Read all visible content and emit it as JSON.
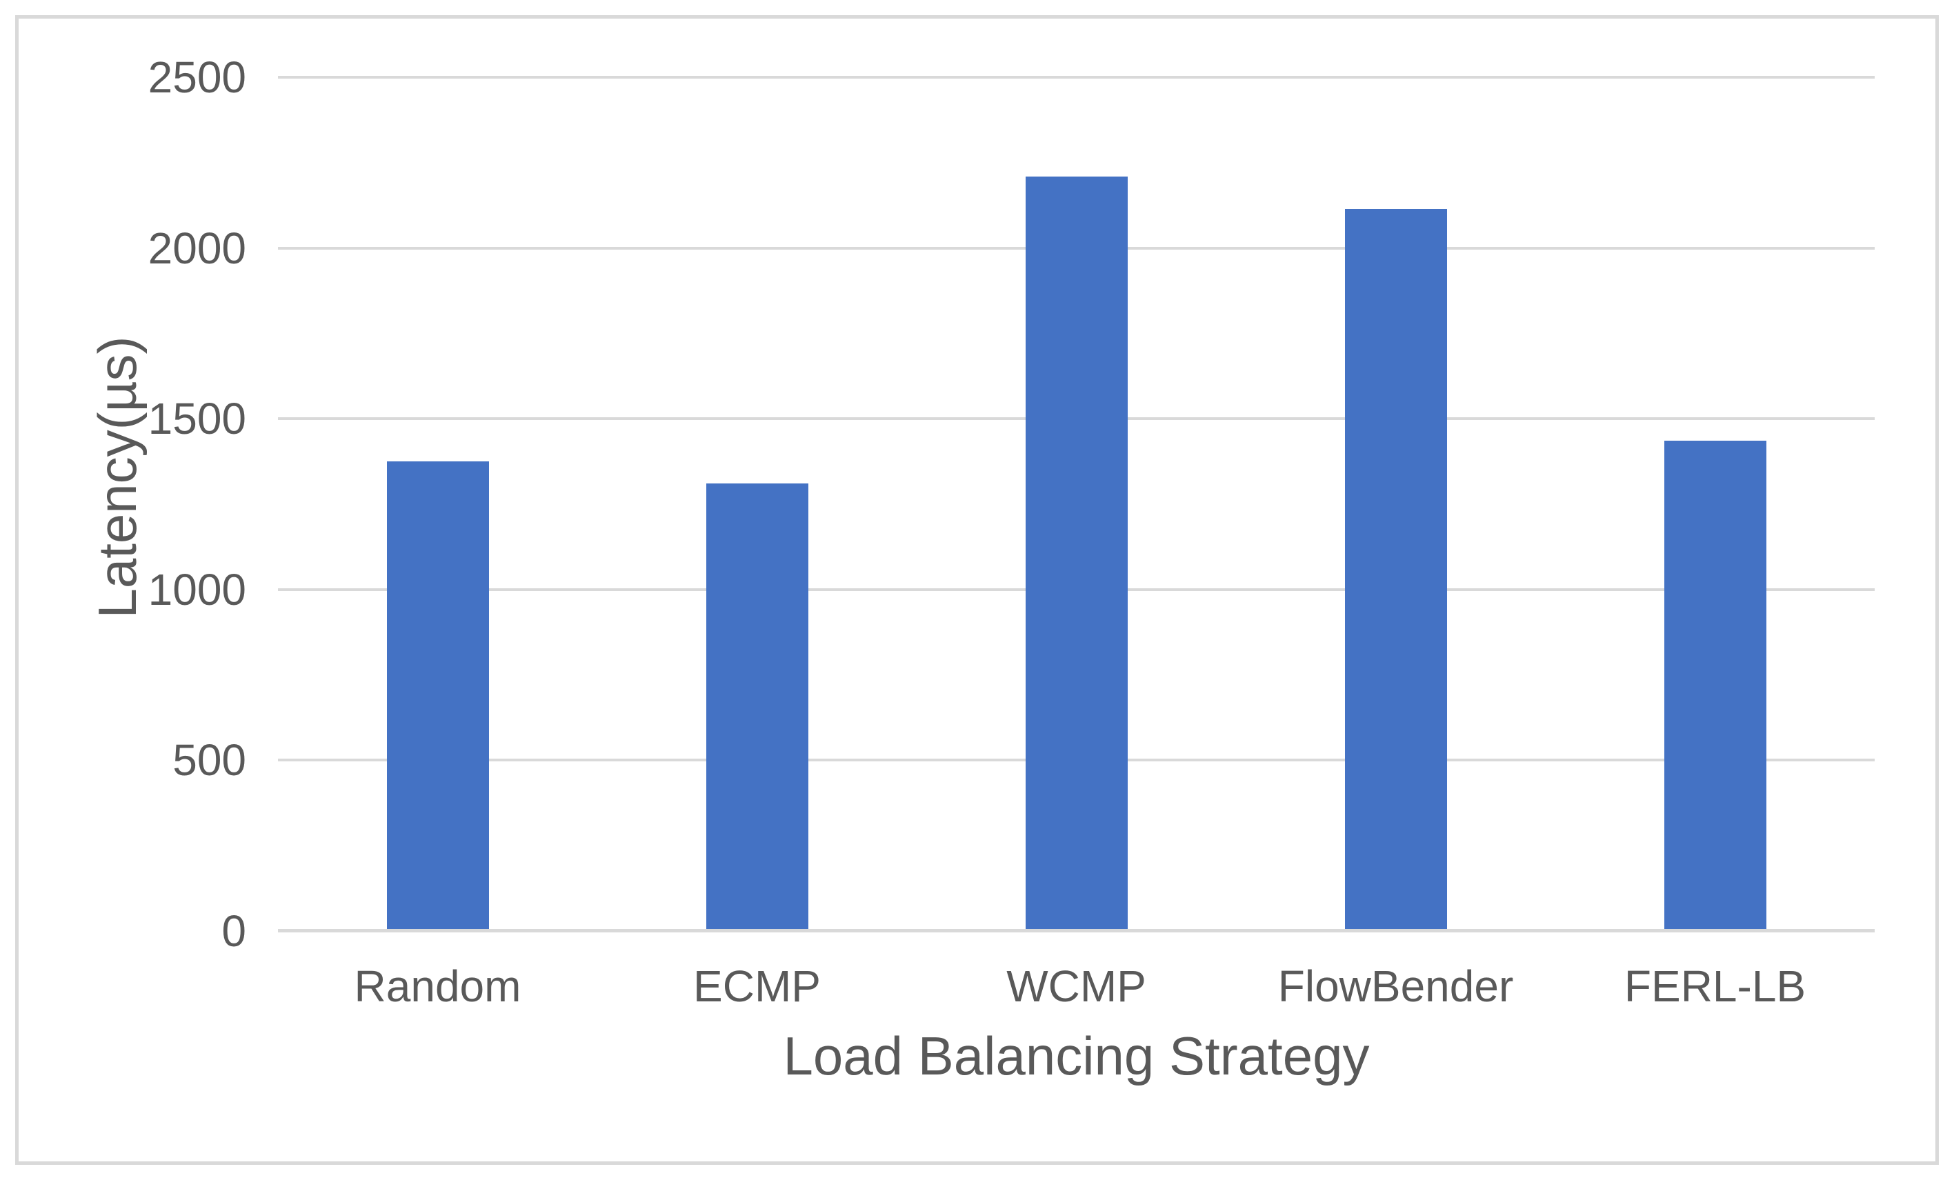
{
  "chart_data": {
    "type": "bar",
    "title": "",
    "categories": [
      "Random",
      "ECMP",
      "WCMP",
      "FlowBender",
      "FERL-LB"
    ],
    "values": [
      1375,
      1310,
      2210,
      2115,
      1435
    ],
    "xlabel": "Load Balancing Strategy",
    "ylabel": "Latency(µs)",
    "ylim": [
      0,
      2500
    ],
    "yticks": [
      0,
      500,
      1000,
      1500,
      2000,
      2500
    ],
    "grid": "horizontal",
    "legend_position": "none",
    "bar_color": "#4472C4",
    "gridline_color": "#D9D9D9",
    "axis_line_color": "#D9D9D9",
    "text_color": "#595959",
    "border_color": "#D9D9D9",
    "background_color": "#FFFFFF"
  }
}
